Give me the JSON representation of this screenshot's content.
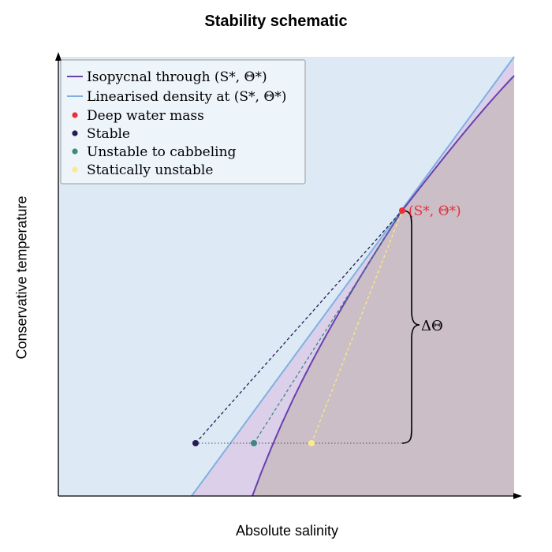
{
  "title": "Stability schematic",
  "xlabel": "Absolute salinity",
  "ylabel": "Conservative temperature",
  "legend": [
    {
      "key": "isopycnal",
      "label": "Isopycnal through (S*, Θ*)",
      "color": "#6a3fb0"
    },
    {
      "key": "linear",
      "label": "Linearised density at (S*, Θ*)",
      "color": "#7fb0e0"
    },
    {
      "key": "deep",
      "label": "Deep water mass",
      "color": "#e8303a"
    },
    {
      "key": "stable",
      "label": "Stable",
      "color": "#261c55"
    },
    {
      "key": "cabbeling",
      "label": "Unstable to cabbeling",
      "color": "#3a8a80"
    },
    {
      "key": "static",
      "label": "Statically unstable",
      "color": "#fde98a"
    }
  ],
  "annotations": {
    "point_label": "(S*, Θ*)",
    "delta_label": "ΔΘ"
  },
  "colors": {
    "background_region": "#ddeaf5",
    "cabbeling_region": "#dccfea",
    "static_region": "#cbbec6"
  }
}
